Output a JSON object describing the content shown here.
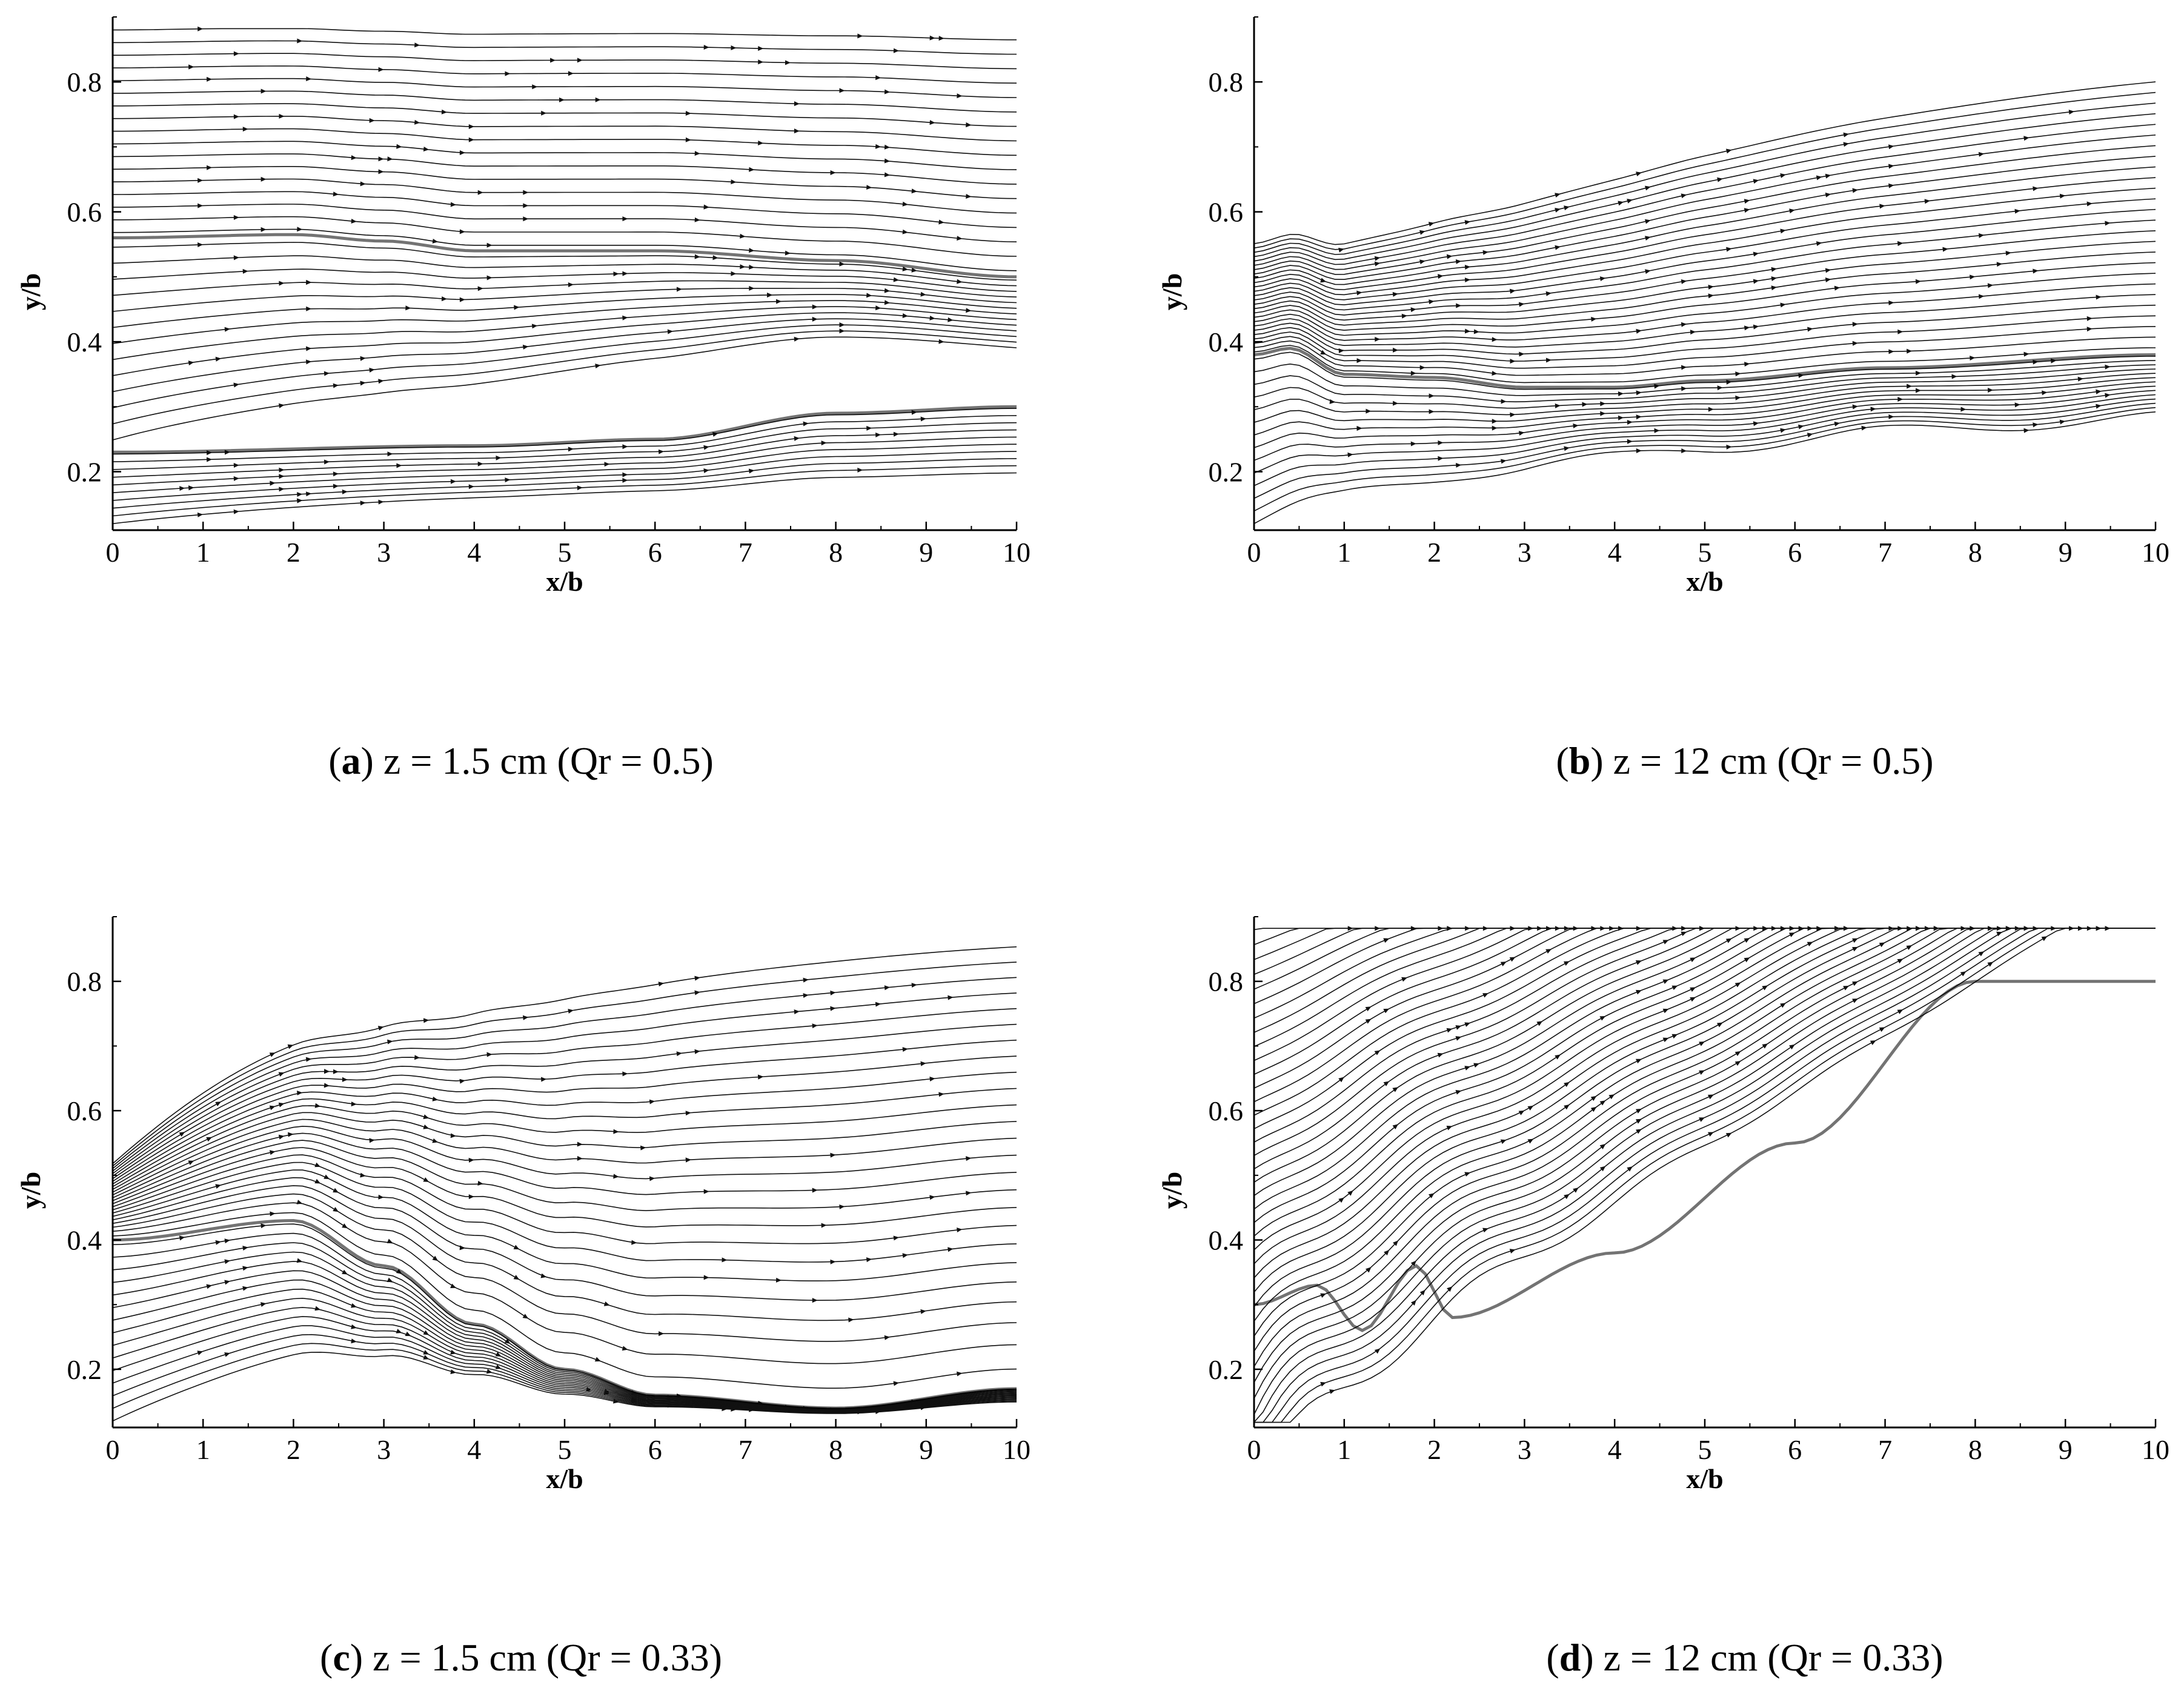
{
  "panels": [
    {
      "caption_letter": "a",
      "caption_text": "z = 1.5 cm (Qr = 0.5)",
      "chart_data": {
        "type": "streamline",
        "xlabel": "x/b",
        "ylabel": "y/b",
        "xlim": [
          0,
          10
        ],
        "ylim": [
          0.11,
          0.9
        ],
        "xticks": [
          "0",
          "1",
          "2",
          "3",
          "4",
          "5",
          "6",
          "7",
          "8",
          "9",
          "10"
        ],
        "yticks": [
          "0.2",
          "0.4",
          "0.6",
          "0.8"
        ],
        "grid": false,
        "flow_features": [
          {
            "kind": "shear_layer",
            "points": [
              [
                0,
                0.56
              ],
              [
                2,
                0.565
              ],
              [
                3,
                0.555
              ],
              [
                4,
                0.54
              ],
              [
                6,
                0.54
              ],
              [
                8,
                0.525
              ],
              [
                10,
                0.5
              ]
            ]
          },
          {
            "kind": "shear_layer",
            "points": [
              [
                0,
                0.23
              ],
              [
                4,
                0.24
              ],
              [
                6,
                0.25
              ],
              [
                8,
                0.29
              ],
              [
                10,
                0.3
              ]
            ]
          }
        ]
      }
    },
    {
      "caption_letter": "b",
      "caption_text": "z = 12 cm (Qr = 0.5)",
      "chart_data": {
        "type": "streamline",
        "xlabel": "x/b",
        "ylabel": "y/b",
        "xlim": [
          0,
          10
        ],
        "ylim": [
          0.11,
          0.9
        ],
        "xticks": [
          "0",
          "1",
          "2",
          "3",
          "4",
          "5",
          "6",
          "7",
          "8",
          "9",
          "10"
        ],
        "yticks": [
          "0.2",
          "0.4",
          "0.6",
          "0.8"
        ],
        "grid": false,
        "flow_features": [
          {
            "kind": "shear_layer",
            "points": [
              [
                0,
                0.38
              ],
              [
                0.4,
                0.39
              ],
              [
                1,
                0.35
              ],
              [
                2,
                0.345
              ],
              [
                3,
                0.33
              ],
              [
                4,
                0.33
              ],
              [
                5,
                0.34
              ],
              [
                7,
                0.36
              ],
              [
                10,
                0.38
              ]
            ]
          }
        ]
      }
    },
    {
      "caption_letter": "c",
      "caption_text": "z = 1.5 cm (Qr = 0.33)",
      "chart_data": {
        "type": "streamline",
        "xlabel": "x/b",
        "ylabel": "y/b",
        "xlim": [
          0,
          10
        ],
        "ylim": [
          0.11,
          0.9
        ],
        "xticks": [
          "0",
          "1",
          "2",
          "3",
          "4",
          "5",
          "6",
          "7",
          "8",
          "9",
          "10"
        ],
        "yticks": [
          "0.2",
          "0.4",
          "0.6",
          "0.8"
        ],
        "grid": false,
        "flow_features": [
          {
            "kind": "shear_layer",
            "points": [
              [
                0,
                0.4
              ],
              [
                2,
                0.43
              ],
              [
                3,
                0.36
              ],
              [
                4,
                0.27
              ],
              [
                5,
                0.2
              ],
              [
                6,
                0.16
              ],
              [
                8,
                0.14
              ],
              [
                10,
                0.17
              ]
            ]
          }
        ]
      }
    },
    {
      "caption_letter": "d",
      "caption_text": "z = 12 cm (Qr = 0.33)",
      "chart_data": {
        "type": "streamline",
        "xlabel": "x/b",
        "ylabel": "y/b",
        "xlim": [
          0,
          10
        ],
        "ylim": [
          0.11,
          0.9
        ],
        "xticks": [
          "0",
          "1",
          "2",
          "3",
          "4",
          "5",
          "6",
          "7",
          "8",
          "9",
          "10"
        ],
        "yticks": [
          "0.2",
          "0.4",
          "0.6",
          "0.8"
        ],
        "grid": false,
        "flow_features": [
          {
            "kind": "shear_layer",
            "points": [
              [
                0,
                0.3
              ],
              [
                0.7,
                0.33
              ],
              [
                1.2,
                0.26
              ],
              [
                1.8,
                0.36
              ],
              [
                2.2,
                0.28
              ],
              [
                4,
                0.38
              ],
              [
                6,
                0.55
              ],
              [
                8,
                0.8
              ]
            ]
          }
        ]
      }
    }
  ]
}
